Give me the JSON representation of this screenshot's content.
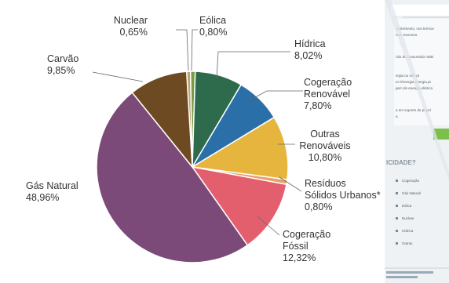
{
  "chart_data": {
    "type": "pie",
    "title": "",
    "unit": "%",
    "slices": [
      {
        "label": "Nuclear",
        "display": "0,65%",
        "value": 0.65,
        "color": "#b9a76a"
      },
      {
        "label": "Eólica",
        "display": "0,80%",
        "value": 0.8,
        "color": "#7a9a4a"
      },
      {
        "label": "Hídrica",
        "display": "8,02%",
        "value": 8.02,
        "color": "#2e6b4d"
      },
      {
        "label": "Cogeração Renovável",
        "display": "7,80%",
        "value": 7.8,
        "color": "#2a6fa8"
      },
      {
        "label": "Outras Renováveis",
        "display": "10,80%",
        "value": 10.8,
        "color": "#e6b53e"
      },
      {
        "label": "Resíduos Sólidos Urbanos*",
        "display": "0,80%",
        "value": 0.8,
        "color": "#e8a06a"
      },
      {
        "label": "Cogeração Fóssil",
        "display": "12,32%",
        "value": 12.32,
        "color": "#e45f6e"
      },
      {
        "label": "Gás Natural",
        "display": "48,96%",
        "value": 48.96,
        "color": "#7b4a78"
      },
      {
        "label": "Carvão",
        "display": "9,85%",
        "value": 9.85,
        "color": "#6e4a22"
      }
    ],
    "labels": [
      {
        "lines": [
          "Nuclear",
          "0,65%"
        ]
      },
      {
        "lines": [
          "Eólica",
          "0,80%"
        ]
      },
      {
        "lines": [
          "Hídrica",
          "8,02%"
        ]
      },
      {
        "lines": [
          "Cogeração",
          "Renovável",
          "7,80%"
        ]
      },
      {
        "lines": [
          "Outras",
          "Renováveis",
          "10,80%"
        ]
      },
      {
        "lines": [
          "Resíduos",
          "Sólidos Urbanos*",
          "0,80%"
        ]
      },
      {
        "lines": [
          "Cogeração",
          "Fóssil",
          "12,32%"
        ]
      },
      {
        "lines": [
          "Gás Natural",
          "48,96%"
        ]
      },
      {
        "lines": [
          "Carvão",
          "9,85%"
        ]
      }
    ]
  },
  "side_page": {
    "heading": "ICIDADE?",
    "snippets": [
      "nvolvimento, nos termos",
      "ntos menores.",
      "cão do consumidor 4DB",
      "ergia ou não pt",
      "ec://energia energia.pt",
      "gem de energia elétrica",
      "a em suporte de papel",
      "a."
    ],
    "list_items": [
      "Cogeração",
      "Gás Natural",
      "Eólica",
      "Nuclear",
      "Hídrica",
      "Outras"
    ]
  }
}
